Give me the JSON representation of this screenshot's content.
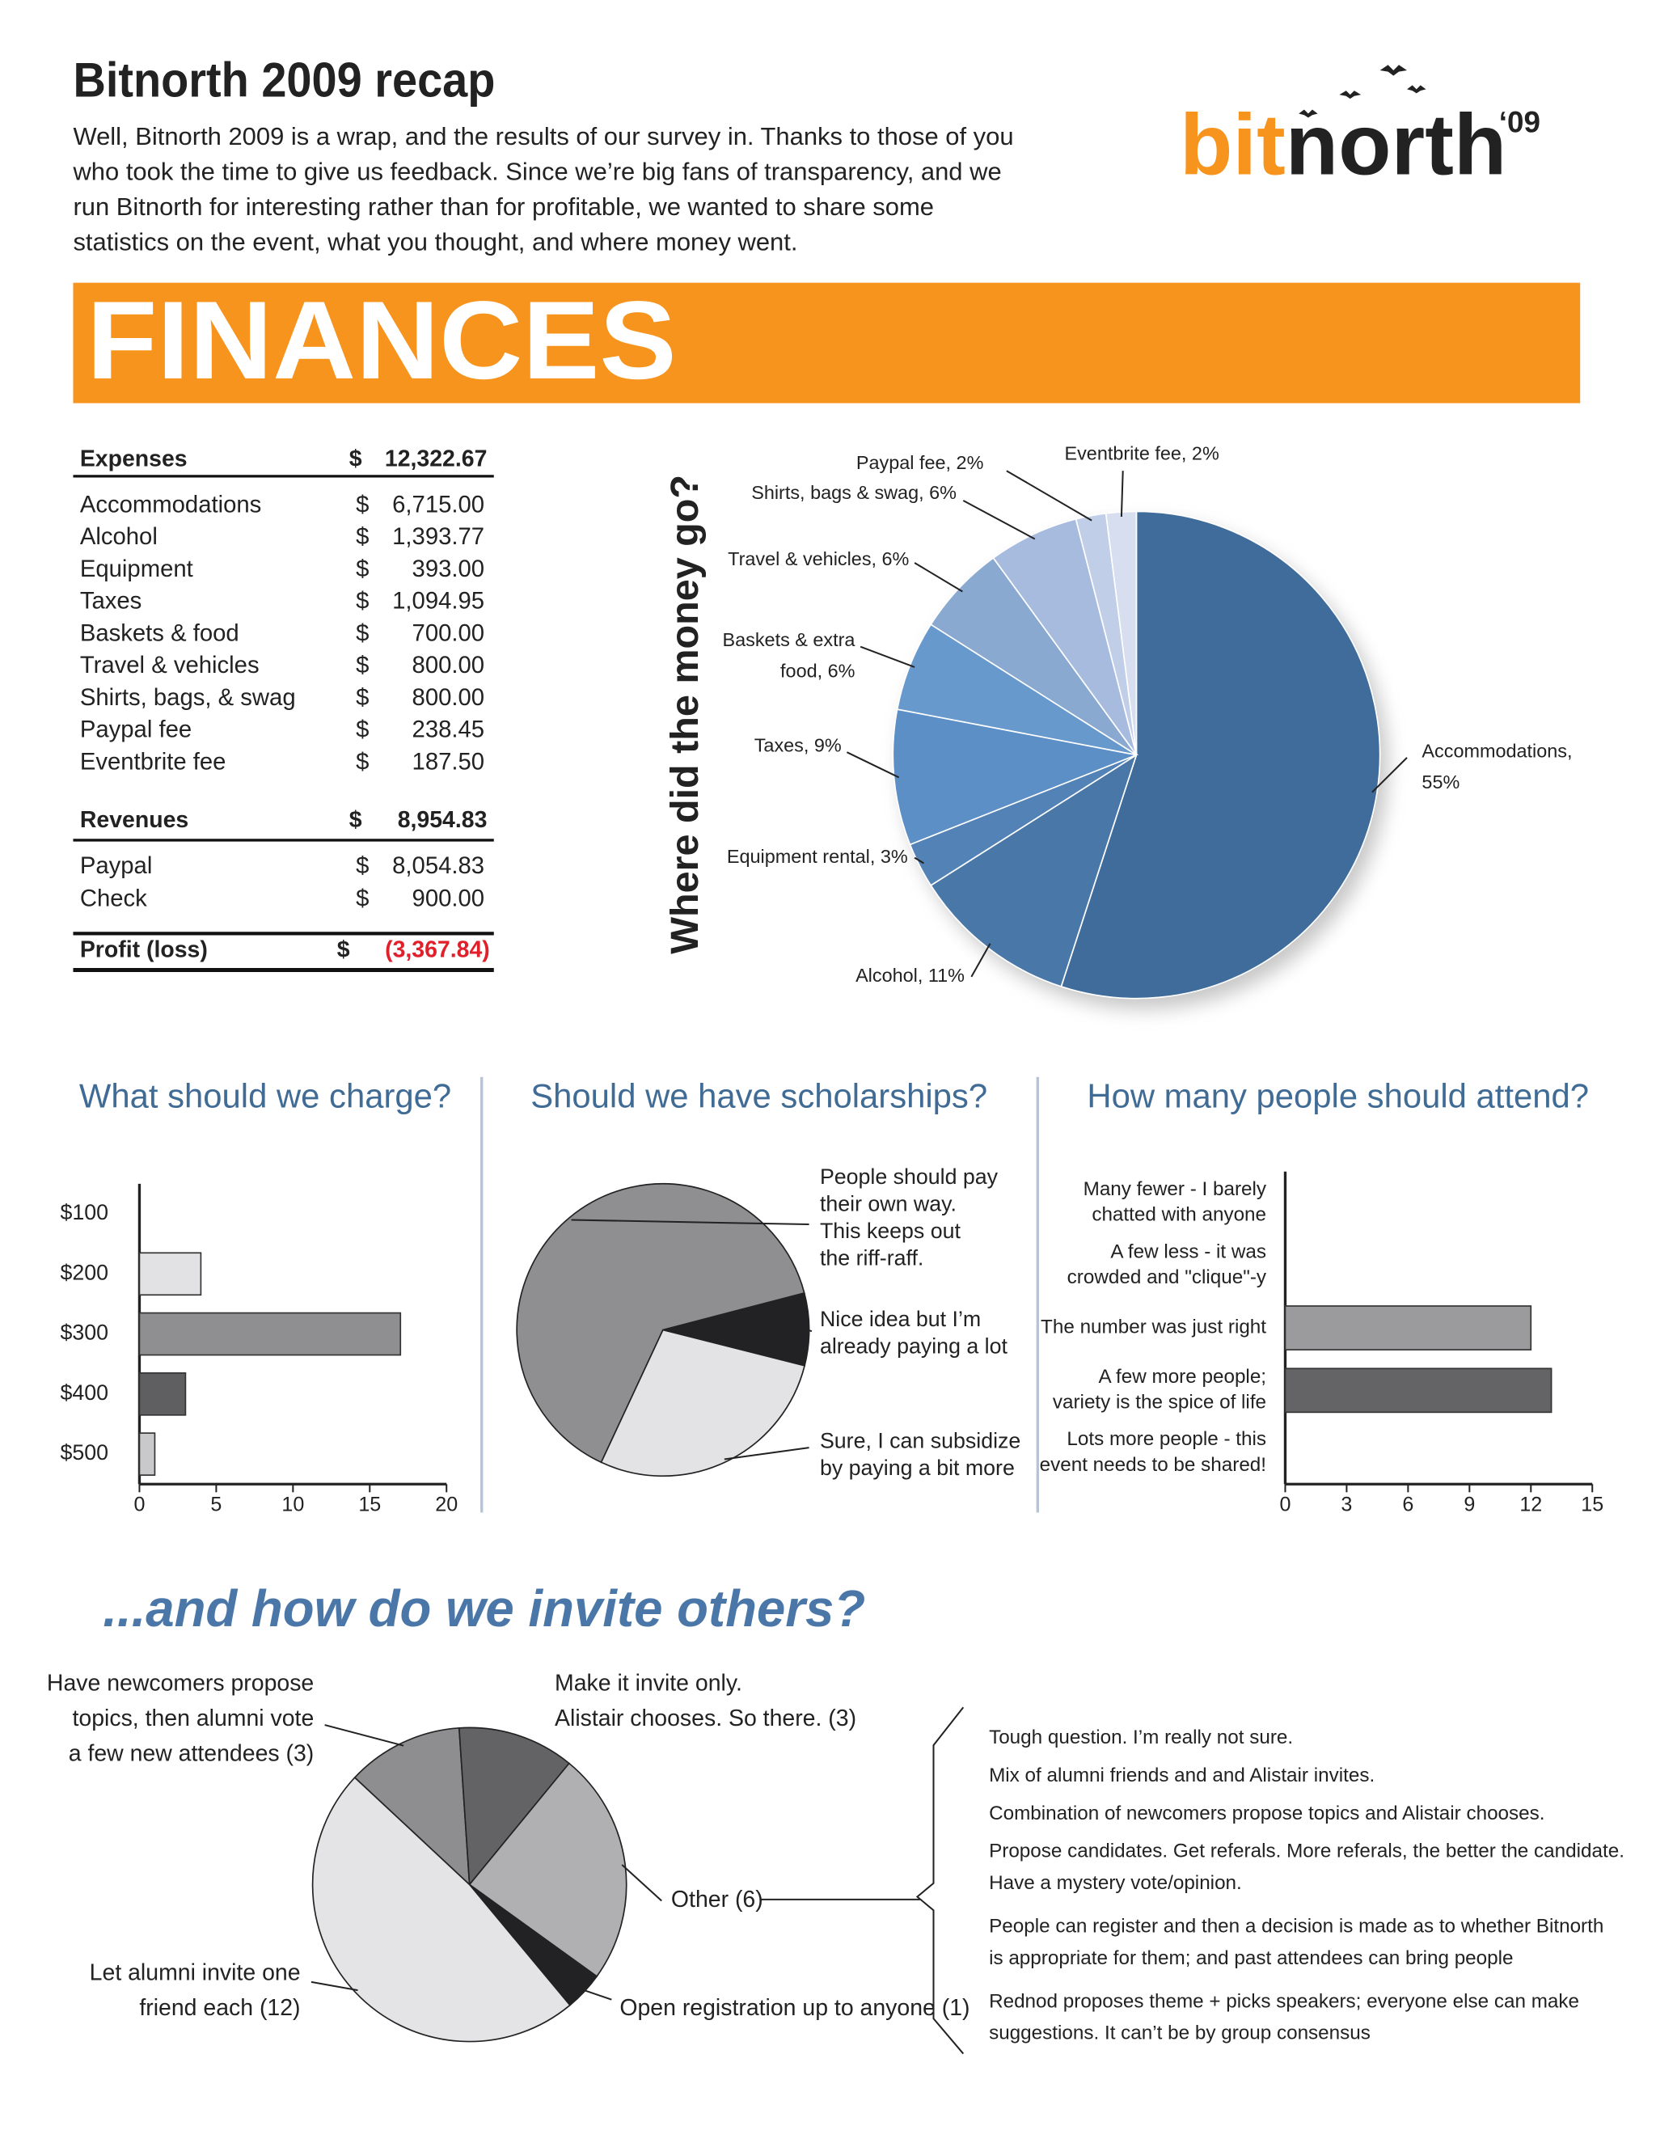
{
  "header": {
    "title": "Bitnorth 2009 recap",
    "intro": [
      "Well, Bitnorth 2009 is a wrap, and the results of our survey in. Thanks to those of you",
      "who took the time to give us feedback. Since we’re big fans of transparency, and we",
      "run Bitnorth for interesting rather than for profitable, we wanted to share some",
      "statistics on the event, what you thought, and where money went."
    ],
    "logo": [
      "bit",
      "north"
    ],
    "logo_year": "‘09"
  },
  "section": "FINANCES",
  "table": {
    "currency": "$",
    "expenses": {
      "label": "Expenses",
      "total": "12,322.67",
      "rows": [
        [
          "Accommodations",
          "6,715.00"
        ],
        [
          "Alcohol",
          "1,393.77"
        ],
        [
          "Equipment",
          "393.00"
        ],
        [
          "Taxes",
          "1,094.95"
        ],
        [
          "Baskets & food",
          "700.00"
        ],
        [
          "Travel & vehicles",
          "800.00"
        ],
        [
          "Shirts, bags, & swag",
          "800.00"
        ],
        [
          "Paypal fee",
          "238.45"
        ],
        [
          "Eventbrite fee",
          "187.50"
        ]
      ]
    },
    "revenues": {
      "label": "Revenues",
      "total": "8,954.83",
      "rows": [
        [
          "Paypal",
          "8,054.83"
        ],
        [
          "Check",
          "900.00"
        ]
      ]
    },
    "profit": {
      "label": "Profit (loss)",
      "total": "(3,367.84)"
    }
  },
  "chart_data": [
    {
      "type": "pie",
      "title": "Where did the money go?",
      "labels": [
        [
          "Accommodations,",
          "55%"
        ],
        [
          "Alcohol, 11%"
        ],
        [
          "Equipment rental, 3%"
        ],
        [
          "Taxes, 9%"
        ],
        [
          "Baskets & extra",
          "food, 6%"
        ],
        [
          "Travel & vehicles, 6%"
        ],
        [
          "Shirts, bags & swag, 6%"
        ],
        [
          "Paypal fee, 2%"
        ],
        [
          "Eventbrite fee, 2%"
        ]
      ],
      "values": [
        55,
        11,
        3,
        9,
        6,
        6,
        6,
        2,
        2
      ],
      "colors": [
        "#3f6c9a",
        "#4977a8",
        "#5282b6",
        "#5b8fc6",
        "#6799cc",
        "#89a9d1",
        "#a7bbde",
        "#c1cee7",
        "#d7deef"
      ]
    },
    {
      "type": "bar",
      "orientation": "horizontal",
      "title": "What should we charge?",
      "categories": [
        "$100",
        "$200",
        "$300",
        "$400",
        "$500"
      ],
      "values": [
        0,
        4,
        17,
        3,
        1
      ],
      "colors": [
        "#ffffff",
        "#e2e2e4",
        "#8f8f91",
        "#5f5f61",
        "#c9c9cb"
      ],
      "xlim": [
        0,
        20
      ],
      "xticks": [
        0,
        5,
        10,
        15,
        20
      ]
    },
    {
      "type": "pie",
      "title": "Should we have scholarships?",
      "labels": [
        [
          "People should pay",
          "their own way.",
          "This keeps out",
          "the riff-raff."
        ],
        [
          "Nice idea but I’m",
          "already paying a lot"
        ],
        [
          "Sure, I can subsidize",
          "by paying a bit more"
        ]
      ],
      "values": [
        16,
        2,
        7
      ],
      "colors": [
        "#8f8f91",
        "#222224",
        "#e3e3e5"
      ]
    },
    {
      "type": "bar",
      "orientation": "horizontal",
      "title": "How many people should attend?",
      "categories": [
        [
          "Many fewer - I barely",
          "chatted with anyone"
        ],
        [
          "A few less - it was",
          "crowded and \"clique\"-y"
        ],
        [
          "The number was just right"
        ],
        [
          "A few more people;",
          "variety is the spice of life"
        ],
        [
          "Lots more people - this",
          "event needs to be shared!"
        ]
      ],
      "values": [
        0,
        0,
        12,
        13,
        0
      ],
      "colors": [
        "#ffffff",
        "#ffffff",
        "#9b9b9d",
        "#646466",
        "#ffffff"
      ],
      "xlim": [
        0,
        15
      ],
      "xticks": [
        0,
        3,
        6,
        9,
        12,
        15
      ]
    },
    {
      "type": "pie",
      "title": "...and how do we invite others?",
      "labels": [
        [
          "Have newcomers propose",
          "topics, then alumni vote",
          "a few new attendees (3)"
        ],
        [
          "Make it invite only.",
          "Alistair chooses. So there. (3)"
        ],
        [
          "Other (6)"
        ],
        [
          "Open registration up to anyone (1)"
        ],
        [
          "Let alumni invite one",
          "friend each (12)"
        ]
      ],
      "values": [
        3,
        3,
        6,
        1,
        12
      ],
      "colors": [
        "#8e8e90",
        "#636365",
        "#b0b0b2",
        "#222224",
        "#e4e4e6"
      ]
    }
  ],
  "other_responses": [
    [
      "Tough question.  I’m really not sure."
    ],
    [
      "Mix of alumni friends and and Alistair invites."
    ],
    [
      "Combination of newcomers propose topics and Alistair chooses."
    ],
    [
      "Propose candidates. Get referals. More referals, the better the candidate.",
      "Have a mystery vote/opinion."
    ],
    [
      "People can register and then a decision is made as to whether Bitnorth",
      "is appropriate for them; and past attendees can bring people"
    ],
    [
      "Rednod proposes theme + picks speakers; everyone else can make",
      "suggestions. It can’t be by group consensus"
    ]
  ]
}
